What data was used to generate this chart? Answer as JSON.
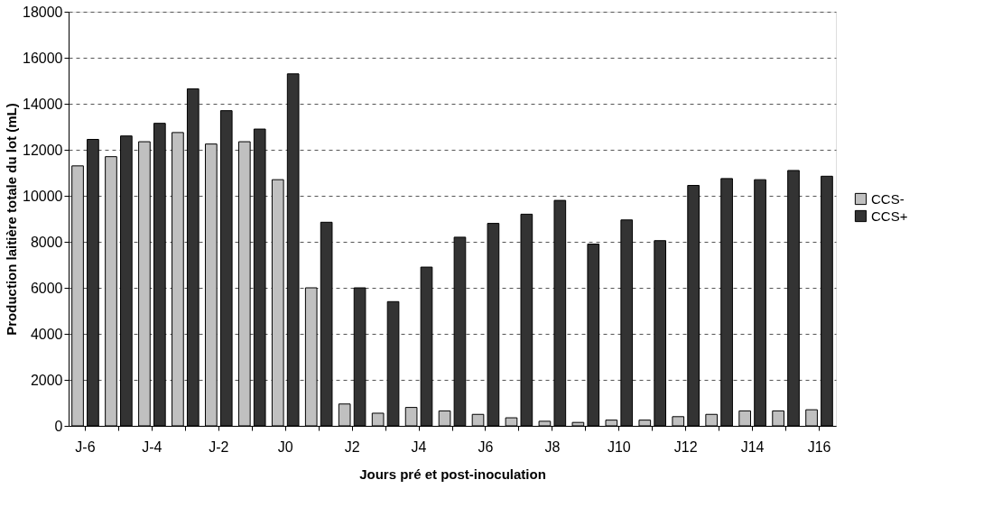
{
  "chart_data": {
    "type": "bar",
    "xlabel": "Jours pré et post-inoculation",
    "ylabel": "Production laitière totale du lot (mL)",
    "categories": [
      "J-6",
      null,
      "J-4",
      null,
      "J-2",
      null,
      "J0",
      null,
      "J2",
      null,
      "J4",
      null,
      "J6",
      null,
      "J8",
      null,
      "J10",
      null,
      "J12",
      null,
      "J14",
      null,
      "J16"
    ],
    "series": [
      {
        "name": "CCS-",
        "color": "#c0c0c0",
        "values": [
          11300,
          11700,
          12350,
          12750,
          12250,
          12350,
          10700,
          6000,
          950,
          550,
          800,
          650,
          500,
          350,
          200,
          150,
          250,
          250,
          400,
          500,
          650,
          650,
          700
        ]
      },
      {
        "name": "CCS+",
        "color": "#333333",
        "values": [
          12450,
          12600,
          13150,
          14650,
          13700,
          12900,
          15300,
          8850,
          6000,
          5400,
          6900,
          8200,
          8800,
          9200,
          9800,
          7900,
          8950,
          8050,
          10450,
          10750,
          10700,
          11100,
          10850
        ]
      }
    ],
    "ylim": [
      0,
      18000
    ],
    "yticks": [
      0,
      2000,
      4000,
      6000,
      8000,
      10000,
      12000,
      14000,
      16000,
      18000
    ],
    "grid": "y",
    "legend": "right"
  }
}
